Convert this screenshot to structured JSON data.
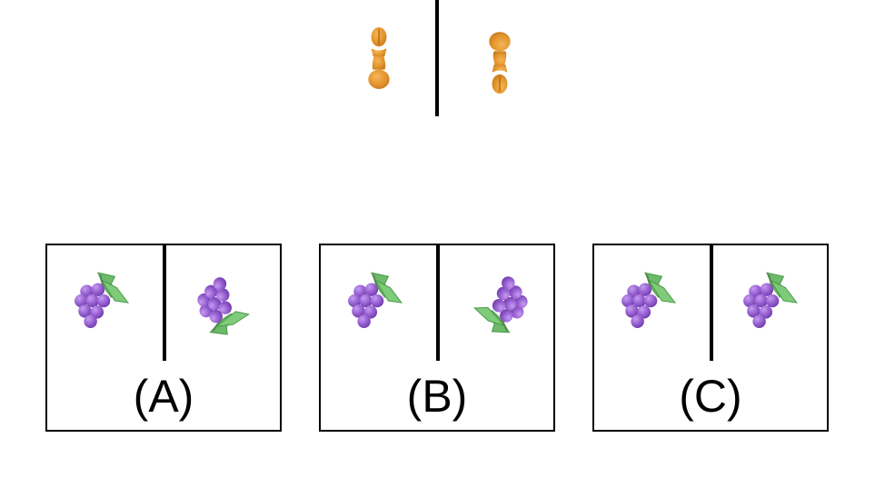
{
  "options": [
    {
      "label": "(A)"
    },
    {
      "label": "(B)"
    },
    {
      "label": "(C)"
    }
  ],
  "colors": {
    "pawn": "#E4962E",
    "grape": "#9B63D4",
    "leaf": "#6DBB6A",
    "line": "#000000"
  },
  "icons": {
    "reference_left": "pawn-icon",
    "reference_right": "pawn-icon",
    "option_items": "grape-icon"
  }
}
